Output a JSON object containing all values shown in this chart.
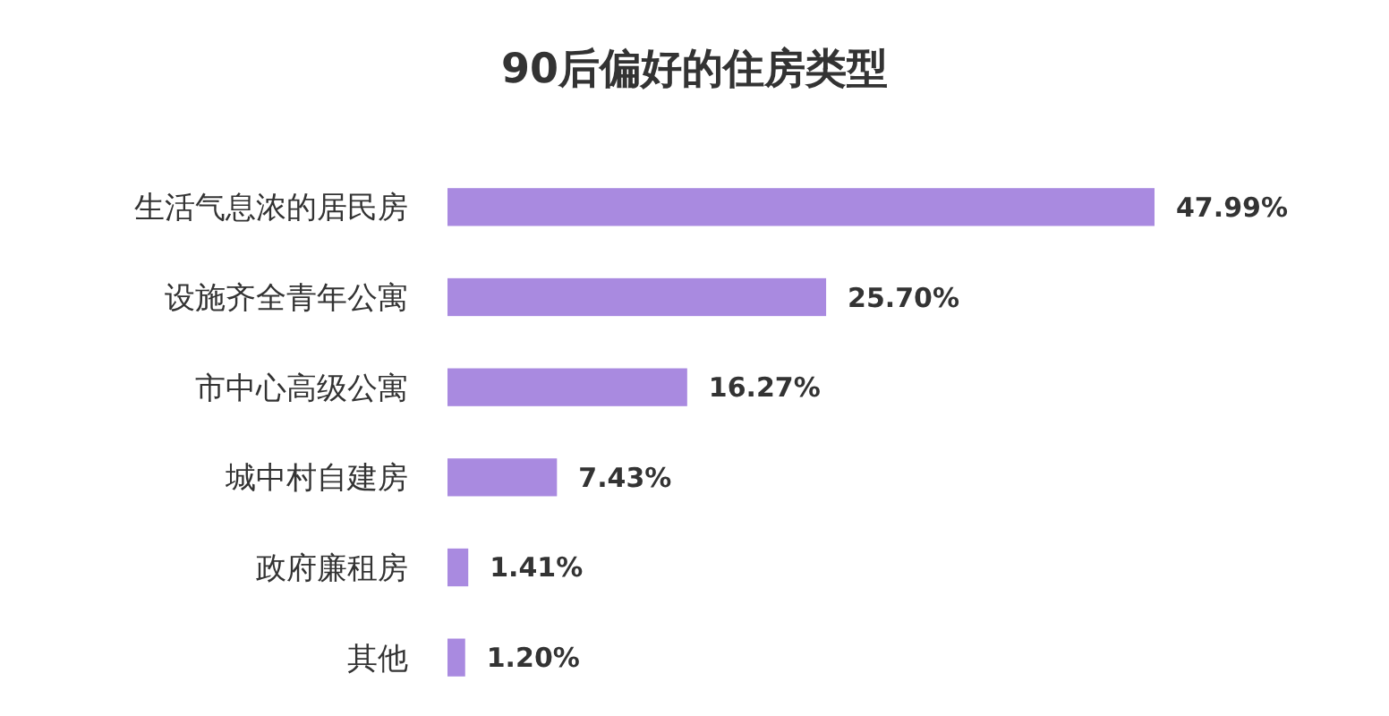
{
  "chart_data": {
    "type": "bar",
    "orientation": "horizontal",
    "title": "90后偏好的住房类型",
    "categories": [
      "生活气息浓的居民房",
      "设施齐全青年公寓",
      "市中心高级公寓",
      "城中村自建房",
      "政府廉租房",
      "其他"
    ],
    "values": [
      47.99,
      25.7,
      16.27,
      7.43,
      1.41,
      1.2
    ],
    "value_labels": [
      "47.99%",
      "25.70%",
      "16.27%",
      "7.43%",
      "1.41%",
      "1.20%"
    ],
    "color": "#a98ae0"
  }
}
